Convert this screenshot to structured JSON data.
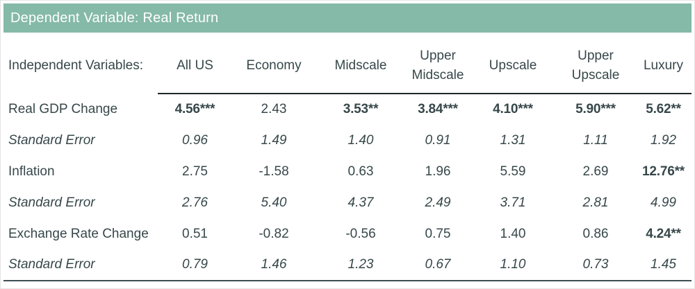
{
  "colors": {
    "header_bg": "#85b9a8",
    "header_text": "#ffffff",
    "body_text": "#37474a",
    "header_rule": "#1d2629",
    "bottom_rule": "#3c4c53"
  },
  "title_bar": {
    "label": "Dependent Variable: Real Return"
  },
  "chart_data": {
    "type": "table",
    "title": "Dependent Variable: Real Return",
    "header": {
      "row_label": "Independent Variables:",
      "columns": [
        "All US",
        "Economy",
        "Midscale",
        "Upper Midscale",
        "Upscale",
        "Upper Upscale",
        "Luxury"
      ]
    },
    "rows": [
      {
        "label": "Real GDP Change",
        "kind": "coefficient",
        "values": [
          "4.56***",
          "2.43",
          "3.53**",
          "3.84***",
          "4.10***",
          "5.90***",
          "5.62**"
        ]
      },
      {
        "label": "Standard Error",
        "kind": "stderr",
        "values": [
          "0.96",
          "1.49",
          "1.40",
          "0.91",
          "1.31",
          "1.11",
          "1.92"
        ]
      },
      {
        "label": "Inflation",
        "kind": "coefficient",
        "values": [
          "2.75",
          "-1.58",
          "0.63",
          "1.96",
          "5.59",
          "2.69",
          "12.76**"
        ]
      },
      {
        "label": "Standard Error",
        "kind": "stderr",
        "values": [
          "2.76",
          "5.40",
          "4.37",
          "2.49",
          "3.71",
          "2.81",
          "4.99"
        ]
      },
      {
        "label": "Exchange Rate Change",
        "kind": "coefficient",
        "values": [
          "0.51",
          "-0.82",
          "-0.56",
          "0.75",
          "1.40",
          "0.86",
          "4.24**"
        ]
      },
      {
        "label": "Standard Error",
        "kind": "stderr",
        "values": [
          "0.79",
          "1.46",
          "1.23",
          "0.67",
          "1.10",
          "0.73",
          "1.45"
        ]
      }
    ]
  }
}
